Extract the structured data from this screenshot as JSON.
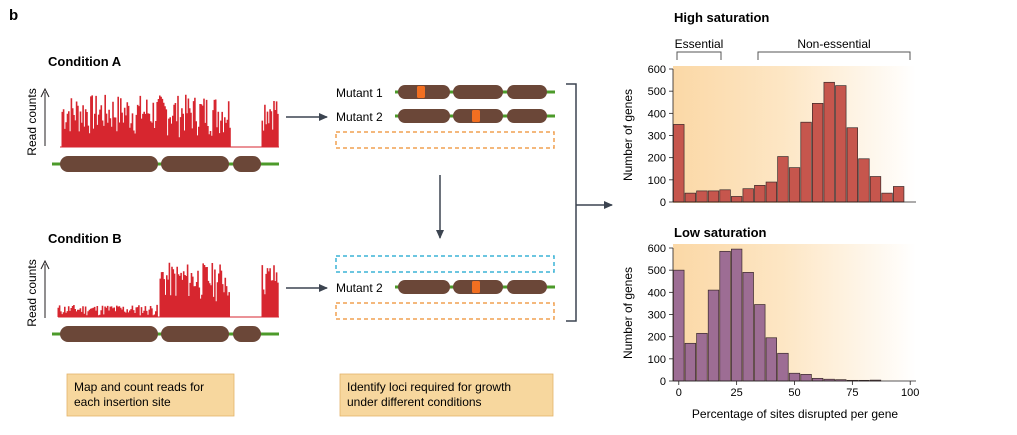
{
  "panel_label": "b",
  "left": {
    "condition_a": "Condition A",
    "condition_b": "Condition B",
    "y_axis_label": "Read counts",
    "step1_box": [
      "Map and count reads for",
      "each insertion site"
    ]
  },
  "middle": {
    "mutant1": "Mutant 1",
    "mutant2": "Mutant 2",
    "step2_box": [
      "Identify loci required for growth",
      "under different conditions"
    ]
  },
  "charts": {
    "x_axis_label": "Percentage of sites disrupted per gene",
    "y_axis_label": "Number of genes",
    "bracket_essential": "Essential",
    "bracket_nonessential": "Non-essential"
  },
  "colors": {
    "red_reads": "#d7262f",
    "gene_body": "#6b4738",
    "chromosome_line": "#4c9a2a",
    "insertion": "#f26f21",
    "orange_dashed": "#f0a050",
    "blue_dashed": "#3bb3d6",
    "step_box_fill": "#f7d79e",
    "hist_high_fill": "#c6564d",
    "hist_low_fill": "#9d6d94"
  },
  "chart_data": [
    {
      "type": "bar",
      "title": "High saturation",
      "xlabel": "",
      "ylabel": "Number of genes",
      "ylim": [
        0,
        600
      ],
      "yticks": [
        0,
        100,
        200,
        300,
        400,
        500,
        600
      ],
      "xticks": [],
      "bin_width": 5,
      "x": [
        0,
        5,
        10,
        15,
        20,
        25,
        30,
        35,
        40,
        45,
        50,
        55,
        60,
        65,
        70,
        75,
        80,
        85,
        90,
        95,
        100
      ],
      "values": [
        350,
        40,
        50,
        50,
        55,
        25,
        60,
        75,
        90,
        205,
        155,
        360,
        445,
        540,
        525,
        335,
        195,
        115,
        40,
        70,
        0
      ],
      "annotations": [
        "Essential",
        "Non-essential"
      ]
    },
    {
      "type": "bar",
      "title": "Low saturation",
      "xlabel": "Percentage of sites disrupted per gene",
      "ylabel": "Number of genes",
      "ylim": [
        0,
        600
      ],
      "yticks": [
        0,
        100,
        200,
        300,
        400,
        500,
        600
      ],
      "xticks": [
        0,
        25,
        50,
        75,
        100
      ],
      "bin_width": 5,
      "x": [
        0,
        5,
        10,
        15,
        20,
        25,
        30,
        35,
        40,
        45,
        50,
        55,
        60,
        65,
        70,
        75,
        80,
        85,
        90,
        95,
        100
      ],
      "values": [
        500,
        170,
        215,
        410,
        585,
        595,
        490,
        345,
        195,
        125,
        35,
        30,
        12,
        8,
        6,
        3,
        3,
        4,
        0,
        0,
        0
      ]
    }
  ]
}
